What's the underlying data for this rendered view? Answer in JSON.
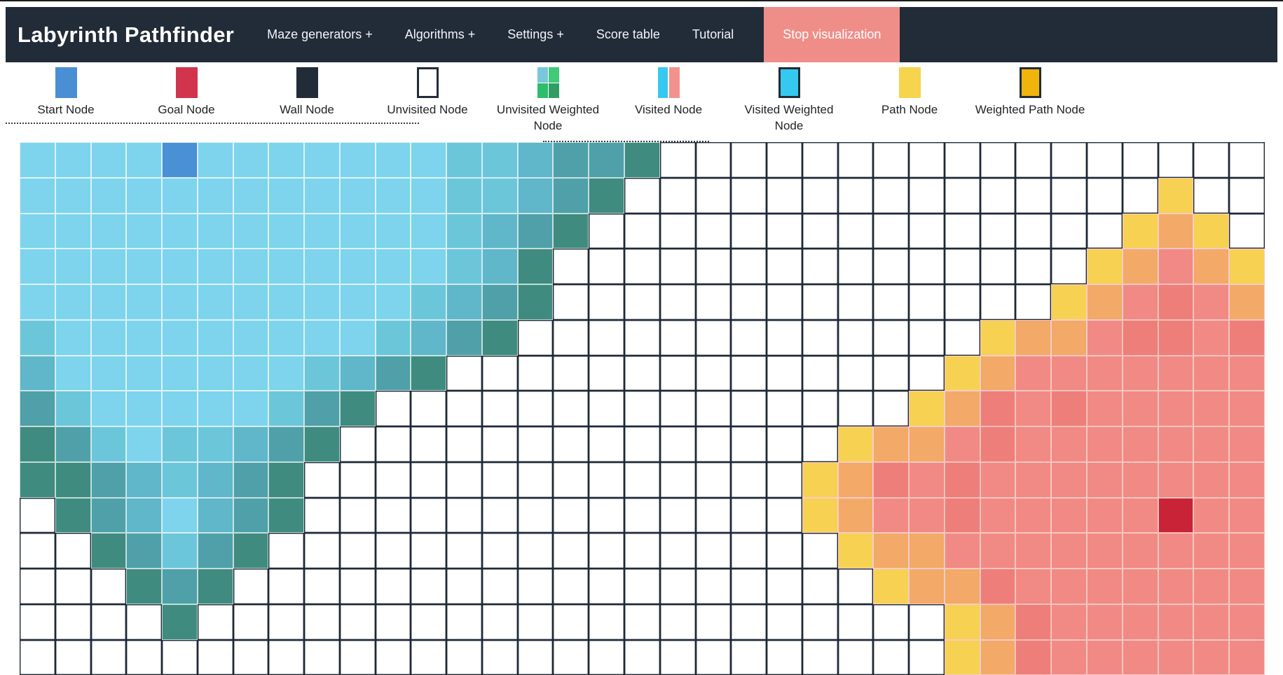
{
  "navbar": {
    "brand": "Labyrinth Pathfinder",
    "items": [
      {
        "label": "Maze generators +"
      },
      {
        "label": "Algorithms +"
      },
      {
        "label": "Settings +"
      },
      {
        "label": "Score table"
      },
      {
        "label": "Tutorial"
      }
    ],
    "action_button": {
      "label": "Stop visualization",
      "color": "#ef8e89"
    },
    "background": "#222b38"
  },
  "legend": {
    "items": [
      {
        "label": "Start Node",
        "type": "start"
      },
      {
        "label": "Goal Node",
        "type": "goal"
      },
      {
        "label": "Wall Node",
        "type": "wall"
      },
      {
        "label": "Unvisited Node",
        "type": "unvisited"
      },
      {
        "label": "Unvisited Weighted Node",
        "type": "unvisited-weighted"
      },
      {
        "label": "Visited Node",
        "type": "visited"
      },
      {
        "label": "Visited Weighted Node",
        "type": "visited-weighted"
      },
      {
        "label": "Path Node",
        "type": "path"
      },
      {
        "label": "Weighted Path Node",
        "type": "weighted-path"
      }
    ],
    "swatches": {
      "start": {
        "fill": "#4a8fd3"
      },
      "goal": {
        "fill": "#d2344e"
      },
      "wall": {
        "fill": "#222b38"
      },
      "unvisited": {
        "fill": "#ffffff",
        "border": "#222b38"
      },
      "unvisited-weighted": {
        "quad": [
          "#7ac7da",
          "#40c977",
          "#2ebd6b",
          "#309e63"
        ]
      },
      "visited": {
        "split": [
          "#36c9f0",
          "#f2928d"
        ]
      },
      "visited-weighted": {
        "fill": "#36c9f0",
        "border": "#222b38"
      },
      "path": {
        "fill": "#f7d44e"
      },
      "weighted-path": {
        "fill": "#f0b50d",
        "border": "#222b38"
      }
    }
  },
  "grid": {
    "cols": 35,
    "rows": 15,
    "start": {
      "row": 0,
      "col": 4
    },
    "goal": {
      "row": 10,
      "col": 32
    },
    "rows_map": [
      "1111S1111111223445.................",
      "11111111111122345...............y..",
      "1111111111112345...............yoy.",
      "111111111111235...............yopoy",
      "111111111112345..............yopqpo",
      "21111111112345.............yoopqqpq",
      "311111112345..............yoppppppp",
      "4211111245...............yoqpqppppp",
      "542122345..............yoopqppppppp",
      "55432345..............yoqpqpppppppp",
      ".5431345..............yoppqpppppGpp",
      "..54245................yooppppppppp",
      "...545..................yooqppppppp",
      "....5.....................yoqpppppp",
      "..........................yoqpppppp"
    ],
    "palette": {
      ".": {
        "bg": "#ffffff",
        "line": "#1e2836",
        "name": "unvisited"
      },
      "1": {
        "bg": "#7dd4ec",
        "line": "#dcf3f9",
        "name": "visited"
      },
      "2": {
        "bg": "#6cc6da",
        "line": "#d3edf4",
        "name": "visited",
        "tex": true
      },
      "3": {
        "bg": "#5fb7c9",
        "line": "#cde8ee",
        "name": "visited",
        "tex": true
      },
      "4": {
        "bg": "#4fa0a8",
        "line": "#c6e0e1",
        "name": "visited",
        "tex": true
      },
      "5": {
        "bg": "#3f8b80",
        "line": "#c0dcd5",
        "name": "visited-frontier"
      },
      "S": {
        "bg": "#4a90d4",
        "line": "#d8e8f6",
        "name": "start-node"
      },
      "G": {
        "bg": "#c82337",
        "line": "#f3b4af",
        "name": "goal-node"
      },
      "y": {
        "bg": "#f7d152",
        "line": "#f8cdc8",
        "name": "frontier"
      },
      "o": {
        "bg": "#f3a967",
        "line": "#f8cdc8",
        "name": "visited",
        "tex": true
      },
      "p": {
        "bg": "#f18a84",
        "line": "#f8c6c1",
        "name": "visited"
      },
      "q": {
        "bg": "#ee7e79",
        "line": "#f5bcb6",
        "name": "visited",
        "tex": true
      }
    }
  }
}
